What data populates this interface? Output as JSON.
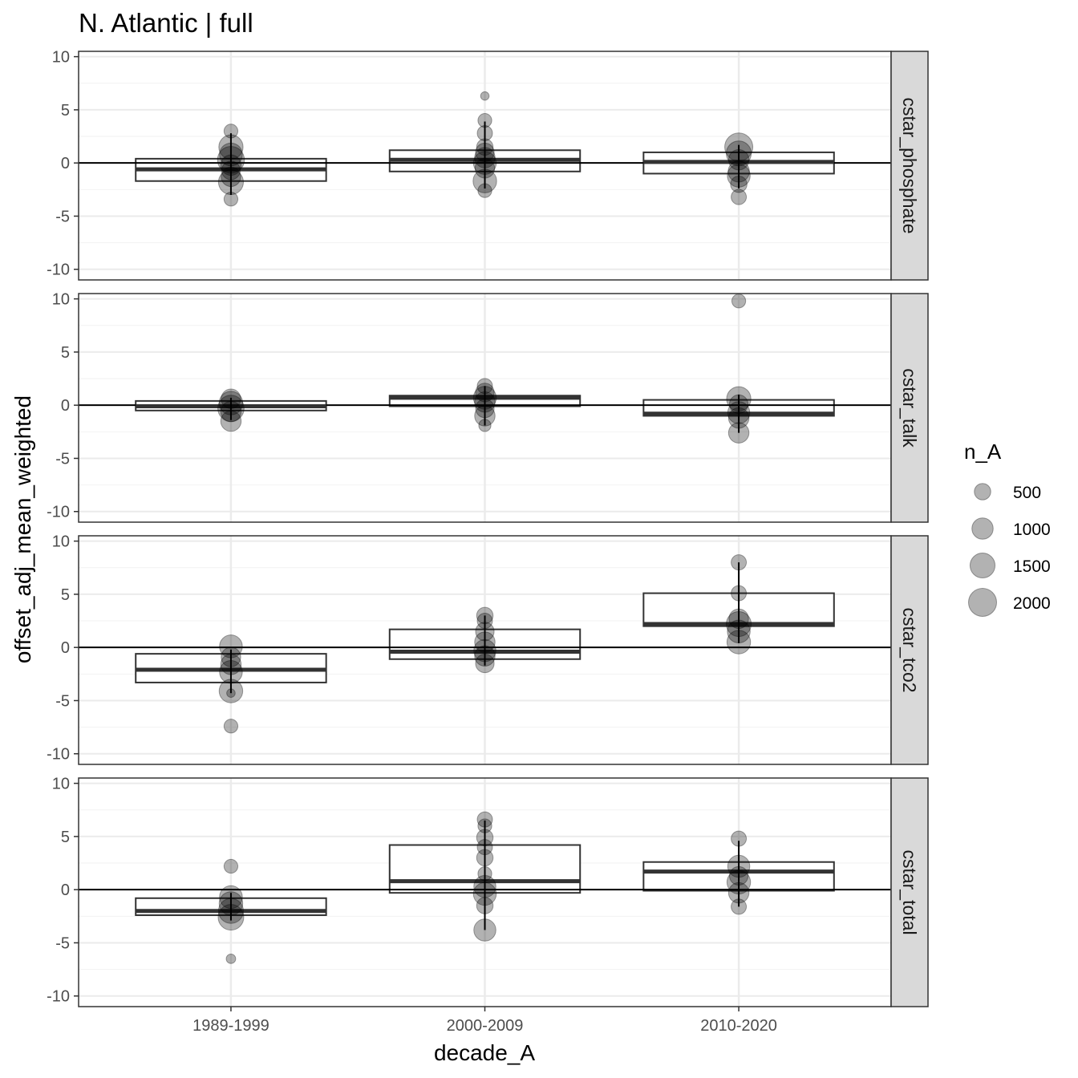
{
  "chart_data": {
    "type": "boxplot",
    "title": "N. Atlantic | full",
    "xlabel": "decade_A",
    "ylabel": "offset_adj_mean_weighted",
    "categories": [
      "1989-1999",
      "2000-2009",
      "2010-2020"
    ],
    "ylim": [
      -11,
      10.5
    ],
    "y_ticks": [
      {
        "value": 10,
        "label": "10"
      },
      {
        "value": 5,
        "label": "5"
      },
      {
        "value": 0,
        "label": "0"
      },
      {
        "value": -5,
        "label": "-5"
      },
      {
        "value": -10,
        "label": "-10"
      }
    ],
    "hline": 0,
    "grid": true,
    "legend": {
      "title": "n_A",
      "position": "right",
      "sizes": [
        {
          "label": "500",
          "value": 500
        },
        {
          "label": "1000",
          "value": 1000
        },
        {
          "label": "1500",
          "value": 1500
        },
        {
          "label": "2000",
          "value": 2000
        }
      ]
    },
    "facets": [
      {
        "label": "cstar_phosphate",
        "boxes": [
          {
            "q1": -1.7,
            "median": -0.6,
            "q3": 0.4,
            "whisker_low": -3.0,
            "whisker_high": 2.8
          },
          {
            "q1": -0.8,
            "median": 0.3,
            "q3": 1.2,
            "whisker_low": -2.4,
            "whisker_high": 3.9
          },
          {
            "q1": -1.0,
            "median": 0.1,
            "q3": 1.0,
            "whisker_low": -2.4,
            "whisker_high": 1.7
          }
        ],
        "points": [
          [
            {
              "y": 3.0,
              "n": 300
            },
            {
              "y": 1.5,
              "n": 1400
            },
            {
              "y": 0.8,
              "n": 1200
            },
            {
              "y": 0.3,
              "n": 1800
            },
            {
              "y": -0.2,
              "n": 900
            },
            {
              "y": -0.7,
              "n": 700
            },
            {
              "y": -1.3,
              "n": 800
            },
            {
              "y": -1.8,
              "n": 1500
            },
            {
              "y": -3.4,
              "n": 300
            }
          ],
          [
            {
              "y": 6.3,
              "n": 50
            },
            {
              "y": 4.0,
              "n": 300
            },
            {
              "y": 2.8,
              "n": 400
            },
            {
              "y": 1.5,
              "n": 500
            },
            {
              "y": 1.0,
              "n": 700
            },
            {
              "y": 0.5,
              "n": 900
            },
            {
              "y": 0.0,
              "n": 1200
            },
            {
              "y": -0.5,
              "n": 800
            },
            {
              "y": -1.7,
              "n": 1300
            },
            {
              "y": -2.6,
              "n": 300
            }
          ],
          [
            {
              "y": 1.5,
              "n": 2000
            },
            {
              "y": 0.9,
              "n": 1500
            },
            {
              "y": 0.3,
              "n": 900
            },
            {
              "y": -0.8,
              "n": 1000
            },
            {
              "y": -1.2,
              "n": 1200
            },
            {
              "y": -2.0,
              "n": 500
            },
            {
              "y": -3.2,
              "n": 400
            }
          ]
        ]
      },
      {
        "label": "cstar_talk",
        "boxes": [
          {
            "q1": -0.5,
            "median": -0.1,
            "q3": 0.4,
            "whisker_low": -1.4,
            "whisker_high": 0.7
          },
          {
            "q1": -0.1,
            "median": 0.7,
            "q3": 0.9,
            "whisker_low": -1.9,
            "whisker_high": 1.8
          },
          {
            "q1": -1.0,
            "median": -0.8,
            "q3": 0.5,
            "whisker_low": -2.6,
            "whisker_high": 1.0
          }
        ],
        "points": [
          [
            {
              "y": 0.6,
              "n": 800
            },
            {
              "y": 0.2,
              "n": 1300
            },
            {
              "y": -0.3,
              "n": 1700
            },
            {
              "y": -0.6,
              "n": 900
            },
            {
              "y": -1.5,
              "n": 900
            }
          ],
          [
            {
              "y": 1.8,
              "n": 400
            },
            {
              "y": 1.2,
              "n": 700
            },
            {
              "y": 0.7,
              "n": 1200
            },
            {
              "y": 0.3,
              "n": 900
            },
            {
              "y": -0.3,
              "n": 700
            },
            {
              "y": -1.0,
              "n": 900
            },
            {
              "y": -1.9,
              "n": 200
            }
          ],
          [
            {
              "y": 9.8,
              "n": 300
            },
            {
              "y": 0.6,
              "n": 1400
            },
            {
              "y": 0.1,
              "n": 700
            },
            {
              "y": -0.7,
              "n": 1100
            },
            {
              "y": -1.2,
              "n": 900
            },
            {
              "y": -2.6,
              "n": 900
            }
          ]
        ]
      },
      {
        "label": "cstar_tco2",
        "boxes": [
          {
            "q1": -3.3,
            "median": -2.1,
            "q3": -0.6,
            "whisker_low": -4.3,
            "whisker_high": -0.2
          },
          {
            "q1": -1.1,
            "median": -0.4,
            "q3": 1.7,
            "whisker_low": -1.7,
            "whisker_high": 3.0
          },
          {
            "q1": 2.0,
            "median": 2.2,
            "q3": 5.1,
            "whisker_low": 0.4,
            "whisker_high": 8.0
          }
        ],
        "points": [
          [
            {
              "y": 0.1,
              "n": 1200
            },
            {
              "y": -0.9,
              "n": 800
            },
            {
              "y": -1.6,
              "n": 900
            },
            {
              "y": -2.3,
              "n": 1200
            },
            {
              "y": -4.1,
              "n": 1300
            },
            {
              "y": -4.3,
              "n": 50
            },
            {
              "y": -7.4,
              "n": 300
            }
          ],
          [
            {
              "y": 3.0,
              "n": 500
            },
            {
              "y": 2.5,
              "n": 400
            },
            {
              "y": 1.5,
              "n": 700
            },
            {
              "y": 0.5,
              "n": 900
            },
            {
              "y": -0.3,
              "n": 1100
            },
            {
              "y": -0.8,
              "n": 900
            },
            {
              "y": -1.5,
              "n": 700
            }
          ],
          [
            {
              "y": 8.0,
              "n": 400
            },
            {
              "y": 5.1,
              "n": 400
            },
            {
              "y": 2.7,
              "n": 800
            },
            {
              "y": 2.2,
              "n": 1500
            },
            {
              "y": 1.5,
              "n": 1200
            },
            {
              "y": 0.5,
              "n": 1300
            }
          ]
        ]
      },
      {
        "label": "cstar_total",
        "boxes": [
          {
            "q1": -2.4,
            "median": -2.0,
            "q3": -0.8,
            "whisker_low": -2.9,
            "whisker_high": -0.3
          },
          {
            "q1": -0.3,
            "median": 0.8,
            "q3": 4.2,
            "whisker_low": -3.8,
            "whisker_high": 6.5
          },
          {
            "q1": -0.1,
            "median": 1.7,
            "q3": 2.6,
            "whisker_low": -1.6,
            "whisker_high": 4.6
          }
        ],
        "points": [
          [
            {
              "y": 2.2,
              "n": 300
            },
            {
              "y": -0.7,
              "n": 1200
            },
            {
              "y": -1.3,
              "n": 1300
            },
            {
              "y": -2.0,
              "n": 1500
            },
            {
              "y": -2.6,
              "n": 1600
            },
            {
              "y": -6.5,
              "n": 80
            }
          ],
          [
            {
              "y": 6.6,
              "n": 400
            },
            {
              "y": 6.0,
              "n": 300
            },
            {
              "y": 4.9,
              "n": 500
            },
            {
              "y": 4.0,
              "n": 400
            },
            {
              "y": 3.0,
              "n": 500
            },
            {
              "y": 1.5,
              "n": 300
            },
            {
              "y": 0.3,
              "n": 1100
            },
            {
              "y": -0.4,
              "n": 1200
            },
            {
              "y": -1.5,
              "n": 500
            },
            {
              "y": -3.8,
              "n": 1100
            }
          ],
          [
            {
              "y": 4.8,
              "n": 400
            },
            {
              "y": 2.2,
              "n": 1100
            },
            {
              "y": 1.3,
              "n": 700
            },
            {
              "y": 0.7,
              "n": 1300
            },
            {
              "y": -0.3,
              "n": 900
            },
            {
              "y": -1.6,
              "n": 400
            }
          ]
        ]
      }
    ]
  }
}
